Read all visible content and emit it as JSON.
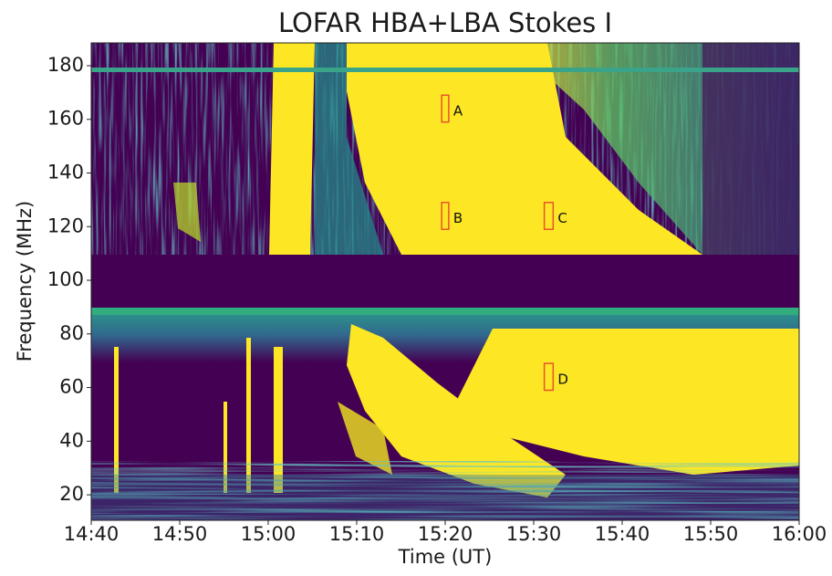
{
  "chart_data": {
    "type": "spectrogram",
    "title": "LOFAR HBA+LBA Stokes I",
    "x_label": "Time (UT)",
    "y_label": "Frequency (MHz)",
    "xlim": [
      880,
      960
    ],
    "xticks": [
      {
        "value": 880,
        "label": "14:40"
      },
      {
        "value": 890,
        "label": "14:50"
      },
      {
        "value": 900,
        "label": "15:00"
      },
      {
        "value": 910,
        "label": "15:10"
      },
      {
        "value": 920,
        "label": "15:20"
      },
      {
        "value": 930,
        "label": "15:30"
      },
      {
        "value": 940,
        "label": "15:40"
      },
      {
        "value": 950,
        "label": "15:50"
      },
      {
        "value": 960,
        "label": "16:00"
      }
    ],
    "ylim": [
      10.5,
      188.5
    ],
    "yticks": [
      20,
      40,
      60,
      80,
      100,
      120,
      140,
      160,
      180
    ],
    "grid": false,
    "annotation_color": "#e8542a",
    "annotations": [
      {
        "text": "A",
        "x": [
          919.6,
          920.4
        ],
        "y": [
          159,
          169
        ]
      },
      {
        "text": "B",
        "x": [
          919.6,
          920.4
        ],
        "y": [
          119,
          129
        ]
      },
      {
        "text": "C",
        "x": [
          931.2,
          932.2
        ],
        "y": [
          119,
          129
        ]
      },
      {
        "text": "D",
        "x": [
          931.2,
          932.2
        ],
        "y": [
          59,
          69
        ]
      }
    ]
  }
}
